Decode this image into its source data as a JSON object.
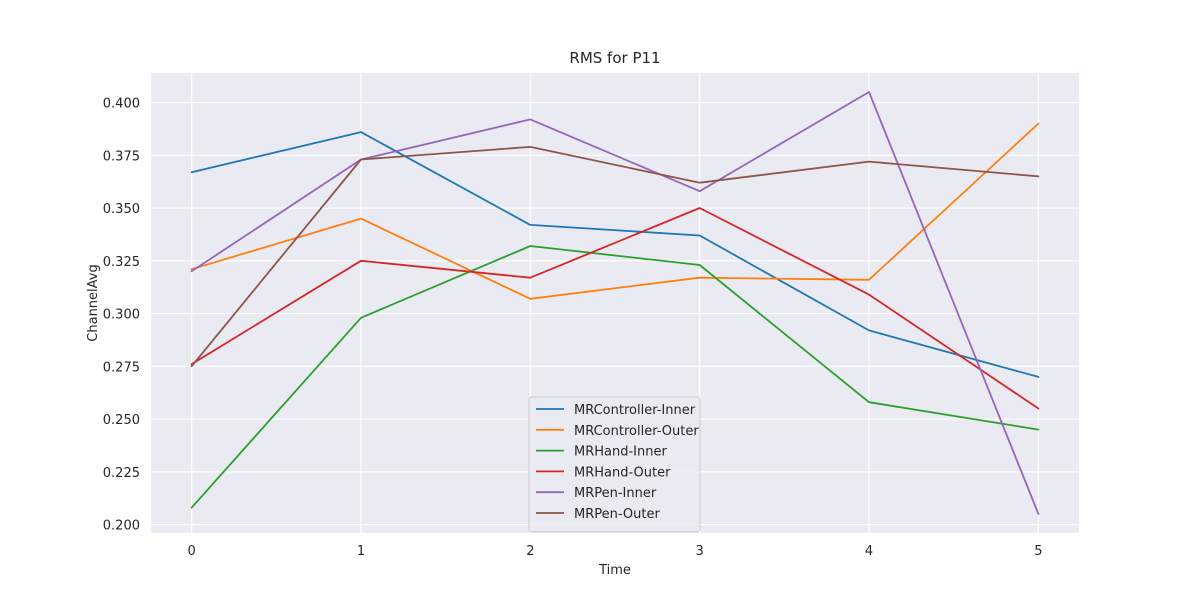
{
  "chart_data": {
    "type": "line",
    "title": "RMS for P11",
    "xlabel": "Time",
    "ylabel": "ChannelAvg",
    "x": [
      0,
      1,
      2,
      3,
      4,
      5
    ],
    "xlim": [
      -0.24,
      5.24
    ],
    "ylim": [
      0.196,
      0.414
    ],
    "xticks": [
      "0",
      "1",
      "2",
      "3",
      "4",
      "5"
    ],
    "yticks": [
      "0.200",
      "0.225",
      "0.250",
      "0.275",
      "0.300",
      "0.325",
      "0.350",
      "0.375",
      "0.400"
    ],
    "grid": true,
    "legend_position": "lower center",
    "series": [
      {
        "name": "MRController-Inner",
        "color": "#1f77b4",
        "values": [
          0.367,
          0.386,
          0.342,
          0.337,
          0.292,
          0.27
        ]
      },
      {
        "name": "MRController-Outer",
        "color": "#ff7f0e",
        "values": [
          0.321,
          0.345,
          0.307,
          0.317,
          0.316,
          0.39
        ]
      },
      {
        "name": "MRHand-Inner",
        "color": "#2ca02c",
        "values": [
          0.208,
          0.298,
          0.332,
          0.323,
          0.258,
          0.245
        ]
      },
      {
        "name": "MRHand-Outer",
        "color": "#d62728",
        "values": [
          0.276,
          0.325,
          0.317,
          0.35,
          0.309,
          0.255
        ]
      },
      {
        "name": "MRPen-Inner",
        "color": "#9467bd",
        "values": [
          0.32,
          0.373,
          0.392,
          0.358,
          0.405,
          0.205
        ]
      },
      {
        "name": "MRPen-Outer",
        "color": "#8c564b",
        "values": [
          0.275,
          0.373,
          0.379,
          0.362,
          0.372,
          0.365
        ]
      }
    ]
  }
}
